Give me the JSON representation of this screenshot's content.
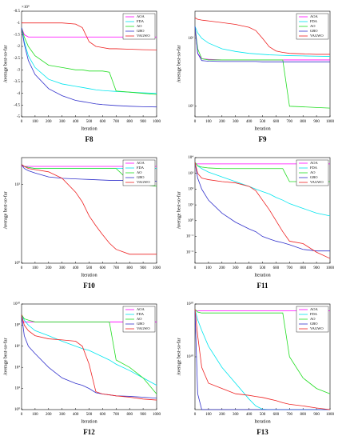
{
  "chart_data": [
    {
      "type": "line",
      "title": "F8",
      "xlabel": "Iteration",
      "ylabel": "Average best-so-far",
      "multiplier": "×10⁴",
      "log": false,
      "x": [
        0,
        20,
        50,
        100,
        200,
        300,
        400,
        450,
        500,
        550,
        600,
        650,
        700,
        800,
        900,
        1000
      ],
      "xlim": [
        0,
        1000
      ],
      "xticks": [
        0,
        100,
        200,
        300,
        400,
        500,
        600,
        700,
        800,
        900,
        1000
      ],
      "ylim": [
        -5,
        -0.5
      ],
      "yticks": [
        -5,
        -4.5,
        -4,
        -3.5,
        -3,
        -2.5,
        -2,
        -1.5,
        -1,
        -0.5
      ],
      "series": [
        {
          "name": "AOA",
          "color": "#ff00ff",
          "values": [
            -1.2,
            -1.5,
            -1.6,
            -1.6,
            -1.6,
            -1.6,
            -1.6,
            -1.6,
            -1.6,
            -1.6,
            -1.6,
            -1.6,
            -1.6,
            -1.6,
            -1.6,
            -1.6
          ]
        },
        {
          "name": "FDA",
          "color": "#00e5ee",
          "values": [
            -1.2,
            -1.8,
            -2.4,
            -2.9,
            -3.4,
            -3.6,
            -3.7,
            -3.75,
            -3.8,
            -3.85,
            -3.88,
            -3.9,
            -3.92,
            -3.95,
            -3.98,
            -4.0
          ]
        },
        {
          "name": "AO",
          "color": "#22dd22",
          "values": [
            -1.2,
            -1.6,
            -2.0,
            -2.4,
            -2.8,
            -2.9,
            -3.0,
            -3.0,
            -3.05,
            -3.05,
            -3.05,
            -3.1,
            -3.9,
            -3.95,
            -4.0,
            -4.05
          ]
        },
        {
          "name": "GBO",
          "color": "#3333cc",
          "values": [
            -1.2,
            -1.9,
            -2.6,
            -3.2,
            -3.8,
            -4.1,
            -4.3,
            -4.35,
            -4.4,
            -4.45,
            -4.48,
            -4.5,
            -4.52,
            -4.55,
            -4.57,
            -4.58
          ]
        },
        {
          "name": "VAGWO",
          "color": "#ee2222",
          "values": [
            -1.0,
            -1.0,
            -1.0,
            -1.0,
            -1.0,
            -1.0,
            -1.05,
            -1.2,
            -1.8,
            -2.0,
            -2.05,
            -2.1,
            -2.1,
            -2.12,
            -2.14,
            -2.15
          ]
        }
      ]
    },
    {
      "type": "line",
      "title": "F9",
      "xlabel": "Iteration",
      "ylabel": "Average best-so-far",
      "log": true,
      "x": [
        0,
        20,
        50,
        100,
        200,
        300,
        400,
        450,
        500,
        550,
        600,
        650,
        700,
        800,
        900,
        1000
      ],
      "xlim": [
        0,
        1000
      ],
      "xticks": [
        0,
        100,
        200,
        300,
        400,
        500,
        600,
        700,
        800,
        900,
        1000
      ],
      "ylim": [
        70,
        2500
      ],
      "yticks": [
        {
          "value": 100,
          "label": "10²"
        },
        {
          "value": 1000,
          "label": "10³"
        }
      ],
      "series": [
        {
          "name": "AOA",
          "color": "#ff00ff",
          "values": [
            1500,
            600,
            500,
            490,
            480,
            480,
            480,
            480,
            480,
            480,
            480,
            480,
            480,
            480,
            480,
            480
          ]
        },
        {
          "name": "FDA",
          "color": "#00e5ee",
          "values": [
            1500,
            1200,
            1000,
            850,
            700,
            640,
            600,
            590,
            580,
            570,
            565,
            560,
            555,
            550,
            545,
            540
          ]
        },
        {
          "name": "AO",
          "color": "#22dd22",
          "values": [
            1500,
            700,
            500,
            480,
            480,
            480,
            480,
            480,
            480,
            480,
            480,
            480,
            100,
            98,
            96,
            94
          ]
        },
        {
          "name": "GBO",
          "color": "#3333cc",
          "values": [
            1500,
            600,
            470,
            460,
            455,
            455,
            455,
            455,
            450,
            450,
            450,
            450,
            450,
            450,
            450,
            450
          ]
        },
        {
          "name": "VAGWO",
          "color": "#ee2222",
          "values": [
            2000,
            1900,
            1850,
            1800,
            1700,
            1600,
            1450,
            1300,
            1000,
            750,
            650,
            620,
            600,
            590,
            580,
            580
          ]
        }
      ]
    },
    {
      "type": "line",
      "title": "F10",
      "xlabel": "Iteration",
      "ylabel": "Average best-so-far",
      "log": true,
      "x": [
        0,
        20,
        50,
        100,
        200,
        300,
        400,
        450,
        500,
        550,
        600,
        650,
        700,
        800,
        900,
        1000
      ],
      "xlim": [
        0,
        1000
      ],
      "xticks": [
        0,
        100,
        200,
        300,
        400,
        500,
        600,
        700,
        800,
        900,
        1000
      ],
      "ylim": [
        1,
        22
      ],
      "yticks": [
        {
          "value": 1,
          "label": "10⁰"
        },
        {
          "value": 10,
          "label": "10¹"
        }
      ],
      "series": [
        {
          "name": "AOA",
          "color": "#ff00ff",
          "values": [
            17,
            17,
            17,
            17,
            17,
            17,
            17,
            17,
            17,
            17,
            17,
            17,
            17,
            17,
            17,
            17
          ]
        },
        {
          "name": "FDA",
          "color": "#00e5ee",
          "values": [
            18,
            17,
            16.5,
            16,
            16,
            16,
            16,
            16,
            16,
            16,
            16,
            16,
            16,
            16,
            16,
            16
          ]
        },
        {
          "name": "AO",
          "color": "#22dd22",
          "values": [
            18,
            17,
            16.5,
            16,
            16,
            16,
            16,
            16,
            16,
            16,
            16,
            16,
            16,
            11,
            10,
            9.5
          ]
        },
        {
          "name": "GBO",
          "color": "#3333cc",
          "values": [
            18,
            16,
            15,
            14,
            12.5,
            12,
            11.8,
            11.7,
            11.6,
            11.5,
            11.4,
            11.3,
            11.3,
            11.2,
            11.1,
            11
          ]
        },
        {
          "name": "VAGWO",
          "color": "#ee2222",
          "values": [
            18,
            17,
            16,
            15.5,
            14.5,
            12,
            8,
            6,
            4,
            3,
            2.3,
            1.8,
            1.5,
            1.3,
            1.3,
            1.3
          ]
        }
      ]
    },
    {
      "type": "line",
      "title": "F11",
      "xlabel": "Iteration",
      "ylabel": "Average best-so-far",
      "log": true,
      "x": [
        0,
        20,
        50,
        100,
        200,
        300,
        400,
        450,
        500,
        550,
        600,
        650,
        700,
        800,
        900,
        1000
      ],
      "xlim": [
        0,
        1000
      ],
      "xticks": [
        0,
        100,
        200,
        300,
        400,
        500,
        600,
        700,
        800,
        900,
        1000
      ],
      "ylim": [
        0.002,
        10000
      ],
      "yticks": [
        {
          "value": 0.01,
          "label": "10⁻²"
        },
        {
          "value": 0.1,
          "label": "10⁻¹"
        },
        {
          "value": 1,
          "label": "10⁰"
        },
        {
          "value": 10,
          "label": "10¹"
        },
        {
          "value": 100,
          "label": "10²"
        },
        {
          "value": 1000,
          "label": "10³"
        },
        {
          "value": 10000,
          "label": "10⁴"
        }
      ],
      "series": [
        {
          "name": "AOA",
          "color": "#ff00ff",
          "values": [
            4000,
            4000,
            4000,
            4000,
            4000,
            4000,
            4000,
            4000,
            4000,
            4000,
            4000,
            4000,
            4000,
            4000,
            4000,
            4000
          ]
        },
        {
          "name": "FDA",
          "color": "#00e5ee",
          "values": [
            5000,
            3000,
            2000,
            1200,
            600,
            300,
            150,
            100,
            70,
            50,
            30,
            20,
            12,
            6,
            3,
            2
          ]
        },
        {
          "name": "AO",
          "color": "#22dd22",
          "values": [
            5000,
            3000,
            2500,
            2200,
            2000,
            2000,
            2000,
            2000,
            2000,
            2000,
            2000,
            2000,
            300,
            300,
            300,
            300
          ]
        },
        {
          "name": "GBO",
          "color": "#3333cc",
          "values": [
            5000,
            500,
            100,
            20,
            3,
            0.8,
            0.3,
            0.2,
            0.1,
            0.07,
            0.05,
            0.04,
            0.03,
            0.015,
            0.012,
            0.012
          ]
        },
        {
          "name": "VAGWO",
          "color": "#ee2222",
          "values": [
            5000,
            1000,
            500,
            400,
            300,
            250,
            150,
            80,
            20,
            5,
            1,
            0.2,
            0.05,
            0.035,
            0.01,
            0.004
          ]
        }
      ]
    },
    {
      "type": "line",
      "title": "F12",
      "xlabel": "Iteration",
      "ylabel": "Average best-so-far",
      "log": true,
      "x": [
        0,
        20,
        50,
        100,
        200,
        300,
        400,
        450,
        500,
        550,
        600,
        650,
        700,
        800,
        900,
        1000
      ],
      "xlim": [
        0,
        1000
      ],
      "xticks": [
        0,
        100,
        200,
        300,
        400,
        500,
        600,
        700,
        800,
        900,
        1000
      ],
      "ylim": [
        1,
        10000000000
      ],
      "yticks": [
        {
          "value": 1,
          "label": "10⁰"
        },
        {
          "value": 100,
          "label": "10²"
        },
        {
          "value": 10000,
          "label": "10⁴"
        },
        {
          "value": 1000000,
          "label": "10⁶"
        },
        {
          "value": 100000000,
          "label": "10⁸"
        },
        {
          "value": 10000000000,
          "label": "10¹⁰"
        }
      ],
      "series": [
        {
          "name": "AOA",
          "color": "#ff00ff",
          "values": [
            200000000.0,
            200000000.0,
            200000000.0,
            200000000.0,
            200000000.0,
            200000000.0,
            200000000.0,
            200000000.0,
            200000000.0,
            200000000.0,
            200000000.0,
            200000000.0,
            200000000.0,
            200000000.0,
            200000000.0,
            200000000.0
          ]
        },
        {
          "name": "FDA",
          "color": "#00e5ee",
          "values": [
            1000000000.0,
            300000000.0,
            100000000.0,
            30000000.0,
            10000000.0,
            3000000.0,
            1000000.0,
            600000.0,
            400000.0,
            200000.0,
            100000.0,
            50000.0,
            20000.0,
            5000.0,
            1000.0,
            200
          ]
        },
        {
          "name": "AO",
          "color": "#22dd22",
          "values": [
            1000000000.0,
            400000000.0,
            300000000.0,
            200000000.0,
            200000000.0,
            200000000.0,
            200000000.0,
            200000000.0,
            200000000.0,
            200000000.0,
            200000000.0,
            200000000.0,
            50000.0,
            10000.0,
            1000.0,
            30
          ]
        },
        {
          "name": "GBO",
          "color": "#3333cc",
          "values": [
            1000000000.0,
            10000000.0,
            1000000.0,
            200000.0,
            10000.0,
            1000.0,
            300,
            200,
            100,
            40,
            30,
            25,
            20,
            18,
            15,
            12
          ]
        },
        {
          "name": "VAGWO",
          "color": "#ee2222",
          "values": [
            1000000000.0,
            100000000.0,
            30000000.0,
            10000000.0,
            5000000.0,
            4000000.0,
            3000000.0,
            1000000.0,
            20000.0,
            50,
            30,
            25,
            20,
            15,
            10,
            8
          ]
        }
      ]
    },
    {
      "type": "line",
      "title": "F13",
      "xlabel": "Iteration",
      "ylabel": "Average best-so-far",
      "log": true,
      "x": [
        0,
        20,
        50,
        100,
        200,
        300,
        400,
        450,
        500,
        550,
        600,
        650,
        700,
        800,
        900,
        1000
      ],
      "xlim": [
        0,
        1000
      ],
      "xticks": [
        0,
        100,
        200,
        300,
        400,
        500,
        600,
        700,
        800,
        900,
        1000
      ],
      "ylim": [
        1,
        1e+20
      ],
      "yticks": [
        {
          "value": 10000000000.0,
          "label": "10¹⁰"
        },
        {
          "value": 1e+20,
          "label": "10²⁰"
        }
      ],
      "series": [
        {
          "name": "AOA",
          "color": "#ff00ff",
          "values": [
            5e+18,
            5e+18,
            5e+18,
            5e+18,
            5e+18,
            5e+18,
            5e+18,
            5e+18,
            5e+18,
            5e+18,
            5e+18,
            5e+18,
            5e+18,
            5e+18,
            5e+18,
            5e+18
          ]
        },
        {
          "name": "FDA",
          "color": "#00e5ee",
          "values": [
            1e+19,
            1e+17,
            1000000000000000.0,
            1000000000000.0,
            100000000.0,
            100000.0,
            100,
            5,
            1.2,
            1,
            1,
            1,
            1,
            1,
            1,
            1
          ]
        },
        {
          "name": "AO",
          "color": "#22dd22",
          "values": [
            1e+19,
            3e+18,
            2e+18,
            2e+18,
            2e+18,
            2e+18,
            2e+18,
            2e+18,
            2e+18,
            2e+18,
            2e+18,
            2e+18,
            10000000000.0,
            1000000.0,
            10000.0,
            1000.0
          ]
        },
        {
          "name": "GBO",
          "color": "#3333cc",
          "values": [
            1e+19,
            1000.0,
            1,
            1,
            1,
            1,
            1,
            1,
            1,
            1,
            1,
            1,
            1,
            1,
            1,
            1
          ]
        },
        {
          "name": "VAGWO",
          "color": "#ee2222",
          "values": [
            1e+19,
            100000000000000.0,
            100000000.0,
            100000.0,
            10000.0,
            1000.0,
            500,
            300,
            200,
            100,
            50,
            20,
            10,
            5,
            2,
            1
          ]
        }
      ]
    }
  ]
}
